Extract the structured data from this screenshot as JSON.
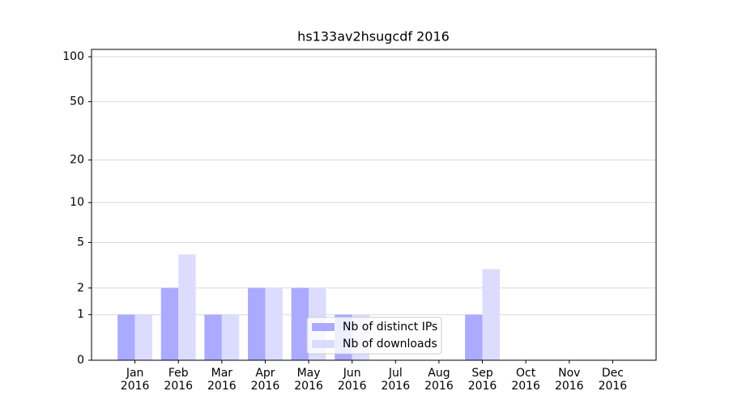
{
  "chart_data": {
    "type": "bar",
    "title": "hs133av2hsugcdf 2016",
    "categories": [
      [
        "Jan",
        "2016"
      ],
      [
        "Feb",
        "2016"
      ],
      [
        "Mar",
        "2016"
      ],
      [
        "Apr",
        "2016"
      ],
      [
        "May",
        "2016"
      ],
      [
        "Jun",
        "2016"
      ],
      [
        "Jul",
        "2016"
      ],
      [
        "Aug",
        "2016"
      ],
      [
        "Sep",
        "2016"
      ],
      [
        "Oct",
        "2016"
      ],
      [
        "Nov",
        "2016"
      ],
      [
        "Dec",
        "2016"
      ]
    ],
    "series": [
      {
        "name": "Nb of distinct IPs",
        "color": "#aaaaff",
        "values": [
          1,
          2,
          1,
          2,
          2,
          1,
          0,
          0,
          1,
          0,
          0,
          0
        ]
      },
      {
        "name": "Nb of downloads",
        "color": "#dcdcff",
        "values": [
          1,
          4,
          1,
          2,
          2,
          1,
          0,
          0,
          3,
          0,
          0,
          0
        ]
      }
    ],
    "yscale": "log1p",
    "ylim": [
      0,
      112
    ],
    "yticks": [
      0,
      1,
      2,
      5,
      10,
      20,
      50,
      100
    ],
    "grid": true,
    "legend": "lower center"
  }
}
